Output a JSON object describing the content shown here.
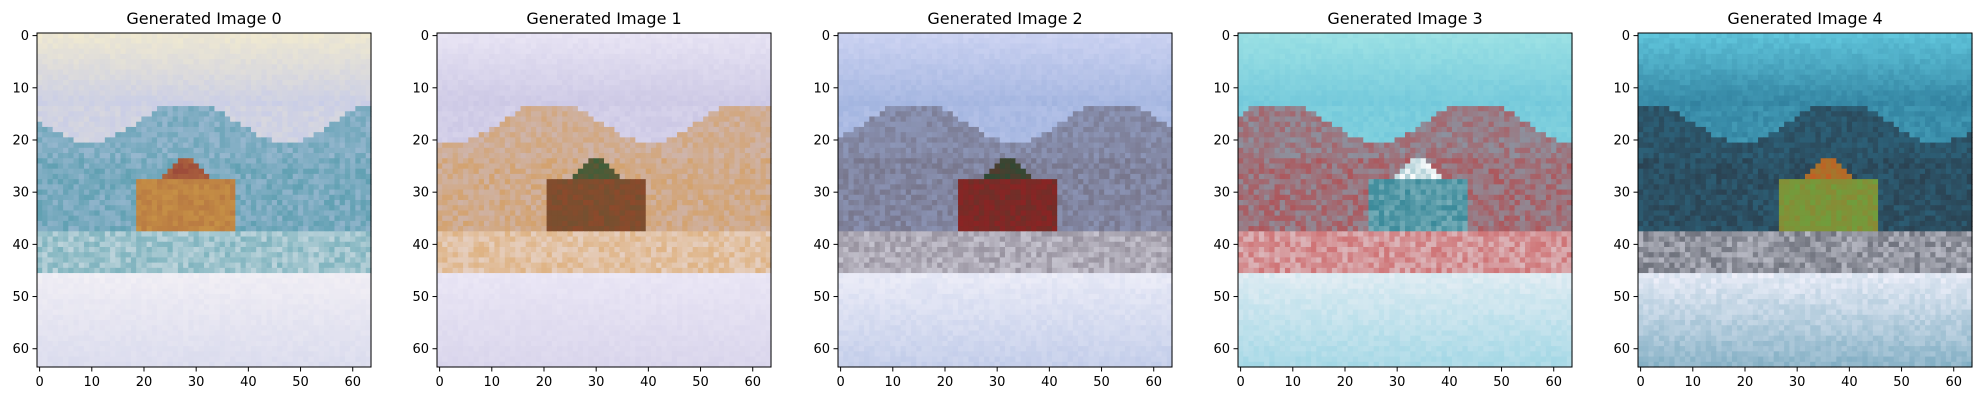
{
  "figure": {
    "panels": [
      {
        "title": "Generated Image 0",
        "palette": [
          "#f1ead0",
          "#c6cbe8",
          "#3f92a0",
          "#c69046",
          "#9c4a3a",
          "#f3f0f5"
        ]
      },
      {
        "title": "Generated Image 1",
        "palette": [
          "#eae6f5",
          "#c9c5e3",
          "#d79646",
          "#8c4a2c",
          "#3e5f3a",
          "#ece8f6"
        ]
      },
      {
        "title": "Generated Image 2",
        "palette": [
          "#cfd5f3",
          "#9fb2de",
          "#6a6270",
          "#8a2424",
          "#2f4a34",
          "#eeeef8"
        ]
      },
      {
        "title": "Generated Image 3",
        "palette": [
          "#9fe3e5",
          "#6fc6da",
          "#c23131",
          "#3b8a9a",
          "#ffffff",
          "#e6eef4"
        ]
      },
      {
        "title": "Generated Image 4",
        "palette": [
          "#62c8de",
          "#2e7c9a",
          "#2a2f3a",
          "#6f9e3d",
          "#c75c22",
          "#f1f1fb"
        ]
      }
    ],
    "x_ticks": [
      "0",
      "10",
      "20",
      "30",
      "40",
      "50",
      "60"
    ],
    "y_ticks": [
      "0",
      "10",
      "20",
      "30",
      "40",
      "50",
      "60"
    ],
    "pixel_grid": 64
  }
}
